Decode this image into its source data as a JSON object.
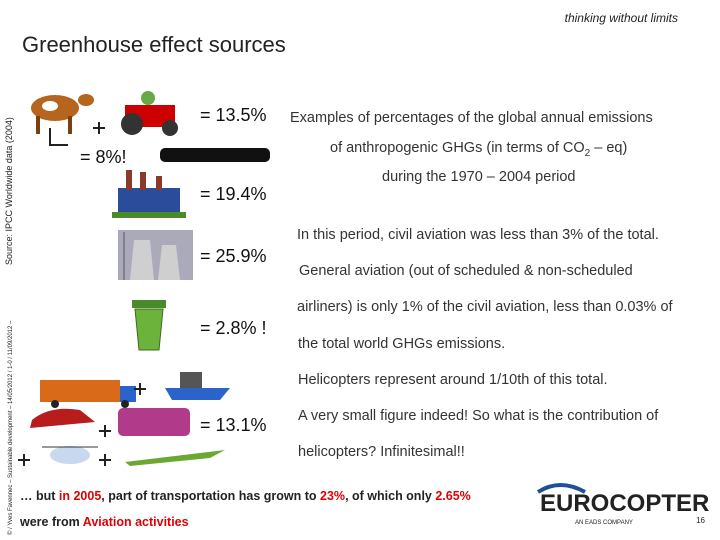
{
  "header": {
    "tagline": "thinking without limits",
    "title": "Greenhouse effect sources"
  },
  "side_notes": {
    "source": "Source: IPCC Worldwide data (2004)",
    "copyright": "© / Yves Favennec – Sustainable development – 14/05/2012 / 1-0 / 11/09/2012 –"
  },
  "sources": [
    {
      "label": "= 13.5%"
    },
    {
      "label": "= 8%!"
    },
    {
      "label": "= 19.4%"
    },
    {
      "label": "= 25.9%"
    },
    {
      "label": "= 2.8% !"
    },
    {
      "label": "= 13.1%"
    }
  ],
  "explanation": {
    "intro": [
      "Examples of percentages of the global annual emissions",
      "of anthropogenic GHGs (in terms of CO",
      "2",
      " – eq)",
      "during the 1970 – 2004 period"
    ],
    "aviation": "In this period, civil aviation was less than 3% of the total.",
    "general_aviation": [
      "General aviation (out of scheduled & non-scheduled",
      "airliners) is only 1% of the civil aviation, less than 0.03% of",
      "the total world GHGs emissions."
    ],
    "helicopters": "Helicopters represent around 1/10th of this total.",
    "conclusion": [
      "A very small figure indeed! So what is the contribution of",
      "helicopters? Infinitesimal!!"
    ]
  },
  "footer_note": {
    "line1": [
      "… but ",
      "in 2005",
      ", part of transportation has grown to ",
      "23%",
      ", of which only ",
      "2.65%"
    ],
    "line2": [
      "were from ",
      "Aviation activities"
    ]
  },
  "logo": {
    "name": "EUROCOPTER",
    "tagline": "AN EADS COMPANY"
  },
  "page_number": "16"
}
